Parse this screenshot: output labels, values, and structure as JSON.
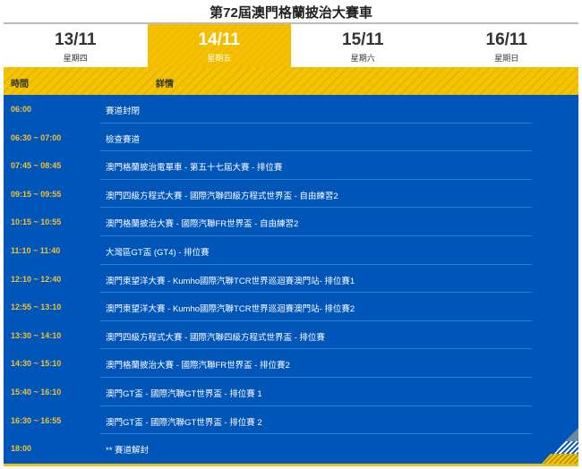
{
  "title": "第72屆澳門格蘭披治大賽車",
  "tabs": [
    {
      "date": "13/11",
      "weekday": "星期四"
    },
    {
      "date": "14/11",
      "weekday": "星期五",
      "active": true
    },
    {
      "date": "15/11",
      "weekday": "星期六"
    },
    {
      "date": "16/11",
      "weekday": "星期日"
    }
  ],
  "header": {
    "time": "時間",
    "details": "詳情"
  },
  "rows": [
    {
      "time": "06:00",
      "event": "賽道封閉"
    },
    {
      "time": "06:30 ~ 07:00",
      "event": "檢查賽道"
    },
    {
      "time": "07:45 ~ 08:45",
      "event": "澳門格蘭披治電單車 - 第五十七屆大賽 - 排位賽"
    },
    {
      "time": "09:15 ~ 09:55",
      "event": "澳門四級方程式大賽 - 國際汽聯四級方程式世界盃 - 自由練習2"
    },
    {
      "time": "10:15 ~ 10:55",
      "event": "澳門格蘭披治大賽 - 國際汽聯FR世界盃 - 自由練習2"
    },
    {
      "time": "11:10 ~ 11:40",
      "event": "大灣區GT盃 (GT4) - 排位賽"
    },
    {
      "time": "12:10 ~ 12:40",
      "event": "澳門東望洋大賽 - Kumho國際汽聯TCR世界巡迴賽澳門站- 排位賽1"
    },
    {
      "time": "12:55 ~ 13:10",
      "event": "澳門東望洋大賽 - Kumho國際汽聯TCR世界巡迴賽澳門站- 排位賽2"
    },
    {
      "time": "13:30 ~ 14:10",
      "event": "澳門四級方程式大賽 - 國際汽聯四級方程式世界盃 - 排位賽"
    },
    {
      "time": "14:30 ~ 15:10",
      "event": "澳門格蘭披治大賽 - 國際汽聯FR世界盃 - 排位賽2"
    },
    {
      "time": "15:40 ~ 16:10",
      "event": "澳門GT盃 - 國際汽聯GT世界盃 - 排位賽 1"
    },
    {
      "time": "16:30 ~ 16:55",
      "event": "澳門GT盃 - 國際汽聯GT世界盃 - 排位賽 2"
    },
    {
      "time": "18:00",
      "event": "** 賽道解封"
    }
  ],
  "colors": {
    "blue": "#0055b8",
    "yellow": "#f5c000",
    "time_text": "#f2c230"
  }
}
